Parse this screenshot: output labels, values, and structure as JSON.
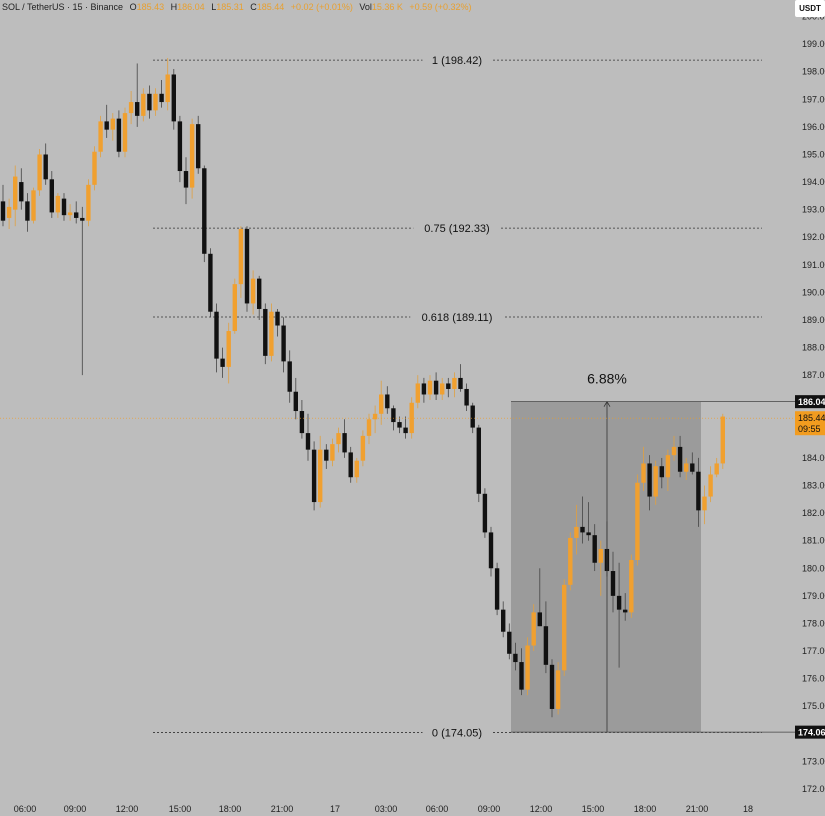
{
  "header": {
    "symbol": "SOL / TetherUS · 15 · Binance",
    "open_label": "O",
    "open": "185.43",
    "high_label": "H",
    "high": "186.04",
    "low_label": "L",
    "low": "185.31",
    "close_label": "C",
    "close": "185.44",
    "change": "+0.02 (+0.01%)",
    "vol_label": "Vol",
    "vol": "15.36 K",
    "vol_change": "+0.59 (+0.32%)"
  },
  "currency": "USDT",
  "colors": {
    "background": "#bdbdbd",
    "up_candle": "#f0a030",
    "down_candle": "#111111",
    "range_box": "#9b9b9b",
    "price_label": "#f29c1f",
    "fib_line": "#333333"
  },
  "chart_data": {
    "type": "candlestick",
    "ylim": [
      171.6,
      200.6
    ],
    "y_ticks": [
      "172.00",
      "173.00",
      "174.00",
      "175.00",
      "176.00",
      "177.00",
      "178.00",
      "179.00",
      "180.00",
      "181.00",
      "182.00",
      "183.00",
      "184.00",
      "185.00",
      "186.00",
      "187.00",
      "188.00",
      "189.00",
      "190.00",
      "191.00",
      "192.00",
      "193.00",
      "194.00",
      "195.00",
      "196.00",
      "197.00",
      "198.00",
      "199.00",
      "200.00"
    ],
    "x_ticks": [
      "06:00",
      "09:00",
      "12:00",
      "15:00",
      "18:00",
      "21:00",
      "17",
      "03:00",
      "06:00",
      "09:00",
      "12:00",
      "15:00",
      "18:00",
      "21:00",
      "18"
    ],
    "fib_levels": [
      {
        "label": "1 (198.42)",
        "value": 198.42
      },
      {
        "label": "0.75 (192.33)",
        "value": 192.33
      },
      {
        "label": "0.618 (189.11)",
        "value": 189.11
      },
      {
        "label": "0 (174.05)",
        "value": 174.05
      }
    ],
    "measure": {
      "label": "6.88%",
      "from": 174.05,
      "to": 186.04
    },
    "price_labels": [
      {
        "text": "186.04",
        "value": 186.04
      },
      {
        "text": "185.44",
        "value": 185.44,
        "timer": "09:55"
      },
      {
        "text": "174.06",
        "value": 174.06
      }
    ],
    "candles": [
      [
        193.3,
        193.9,
        192.4,
        192.6
      ],
      [
        192.7,
        193.4,
        192.3,
        193.1
      ],
      [
        193.0,
        194.6,
        192.4,
        194.2
      ],
      [
        194.0,
        194.5,
        193.0,
        193.3
      ],
      [
        193.3,
        193.6,
        192.2,
        192.6
      ],
      [
        192.6,
        193.8,
        192.5,
        193.7
      ],
      [
        193.7,
        195.2,
        193.5,
        195.0
      ],
      [
        195.0,
        195.4,
        193.9,
        194.1
      ],
      [
        194.1,
        194.4,
        192.7,
        192.9
      ],
      [
        192.9,
        193.6,
        192.7,
        193.5
      ],
      [
        193.4,
        193.6,
        192.6,
        192.8
      ],
      [
        192.8,
        193.2,
        192.6,
        192.9
      ],
      [
        192.9,
        193.3,
        192.5,
        192.7
      ],
      [
        192.7,
        193.1,
        187.0,
        192.6
      ],
      [
        192.6,
        194.1,
        192.4,
        193.9
      ],
      [
        193.9,
        195.3,
        193.7,
        195.1
      ],
      [
        195.1,
        196.4,
        194.9,
        196.2
      ],
      [
        196.2,
        196.8,
        195.6,
        195.9
      ],
      [
        195.9,
        196.5,
        195.5,
        196.3
      ],
      [
        196.3,
        196.6,
        194.9,
        195.1
      ],
      [
        195.1,
        196.7,
        194.9,
        196.5
      ],
      [
        196.5,
        197.3,
        196.1,
        196.9
      ],
      [
        196.9,
        198.3,
        196.0,
        196.4
      ],
      [
        196.4,
        197.4,
        196.2,
        197.2
      ],
      [
        197.2,
        197.5,
        196.3,
        196.6
      ],
      [
        196.6,
        197.4,
        196.4,
        197.2
      ],
      [
        197.2,
        197.7,
        196.7,
        196.9
      ],
      [
        196.9,
        198.5,
        196.6,
        197.9
      ],
      [
        197.9,
        198.1,
        195.9,
        196.2
      ],
      [
        196.2,
        196.4,
        194.0,
        194.4
      ],
      [
        194.4,
        194.9,
        193.2,
        193.8
      ],
      [
        193.8,
        196.3,
        193.4,
        196.1
      ],
      [
        196.1,
        196.4,
        194.3,
        194.5
      ],
      [
        194.5,
        194.6,
        191.1,
        191.4
      ],
      [
        191.4,
        191.6,
        189.1,
        189.3
      ],
      [
        189.3,
        189.6,
        187.1,
        187.6
      ],
      [
        187.6,
        188.0,
        186.9,
        187.3
      ],
      [
        187.3,
        188.9,
        186.7,
        188.6
      ],
      [
        188.6,
        190.5,
        188.5,
        190.3
      ],
      [
        190.3,
        192.4,
        189.8,
        192.3
      ],
      [
        192.3,
        192.4,
        189.3,
        189.6
      ],
      [
        189.6,
        190.8,
        189.2,
        190.5
      ],
      [
        190.5,
        190.6,
        189.0,
        189.4
      ],
      [
        189.4,
        189.6,
        187.4,
        187.7
      ],
      [
        187.7,
        189.6,
        187.5,
        189.3
      ],
      [
        189.3,
        189.4,
        188.4,
        188.8
      ],
      [
        188.8,
        189.1,
        187.1,
        187.5
      ],
      [
        187.5,
        187.9,
        186.0,
        186.4
      ],
      [
        186.4,
        186.9,
        185.4,
        185.7
      ],
      [
        185.7,
        186.1,
        184.7,
        184.9
      ],
      [
        184.9,
        185.6,
        183.9,
        184.3
      ],
      [
        184.3,
        184.6,
        182.1,
        182.4
      ],
      [
        182.4,
        184.8,
        182.2,
        184.3
      ],
      [
        184.3,
        184.5,
        183.6,
        183.9
      ],
      [
        183.9,
        184.7,
        183.7,
        184.5
      ],
      [
        184.5,
        185.1,
        184.2,
        184.9
      ],
      [
        184.9,
        185.4,
        184.0,
        184.2
      ],
      [
        184.2,
        184.4,
        183.1,
        183.3
      ],
      [
        183.3,
        184.0,
        183.1,
        183.9
      ],
      [
        183.9,
        185.0,
        183.7,
        184.8
      ],
      [
        184.8,
        185.6,
        184.5,
        185.4
      ],
      [
        185.4,
        185.9,
        184.9,
        185.6
      ],
      [
        185.6,
        186.8,
        185.2,
        186.3
      ],
      [
        186.3,
        186.6,
        185.6,
        185.8
      ],
      [
        185.8,
        185.9,
        185.0,
        185.3
      ],
      [
        185.3,
        185.5,
        184.9,
        185.1
      ],
      [
        185.1,
        185.5,
        184.7,
        184.9
      ],
      [
        184.9,
        186.2,
        184.7,
        186.0
      ],
      [
        186.0,
        187.0,
        185.8,
        186.7
      ],
      [
        186.7,
        186.9,
        186.0,
        186.3
      ],
      [
        186.3,
        187.0,
        186.1,
        186.8
      ],
      [
        186.8,
        187.1,
        186.1,
        186.3
      ],
      [
        186.3,
        186.9,
        186.1,
        186.7
      ],
      [
        186.7,
        186.9,
        186.2,
        186.5
      ],
      [
        186.5,
        187.1,
        186.2,
        186.9
      ],
      [
        186.9,
        187.4,
        186.4,
        186.5
      ],
      [
        186.5,
        186.7,
        185.7,
        185.9
      ],
      [
        185.9,
        186.0,
        184.9,
        185.1
      ],
      [
        185.1,
        185.2,
        182.4,
        182.7
      ],
      [
        182.7,
        182.9,
        181.1,
        181.3
      ],
      [
        181.3,
        181.5,
        179.7,
        180.0
      ],
      [
        180.0,
        180.2,
        178.3,
        178.5
      ],
      [
        178.5,
        178.8,
        177.5,
        177.7
      ],
      [
        177.7,
        178.0,
        176.7,
        176.9
      ],
      [
        176.9,
        177.3,
        176.3,
        176.6
      ],
      [
        176.6,
        177.1,
        175.4,
        175.6
      ],
      [
        175.6,
        177.5,
        175.4,
        177.2
      ],
      [
        177.2,
        178.7,
        177.0,
        178.4
      ],
      [
        178.4,
        180.0,
        177.9,
        177.9
      ],
      [
        177.9,
        178.8,
        176.2,
        176.5
      ],
      [
        176.5,
        176.7,
        174.6,
        174.9
      ],
      [
        174.9,
        176.6,
        174.7,
        176.3
      ],
      [
        176.3,
        179.6,
        176.1,
        179.4
      ],
      [
        179.4,
        181.3,
        179.2,
        181.1
      ],
      [
        181.1,
        182.3,
        180.5,
        181.5
      ],
      [
        181.5,
        182.6,
        180.9,
        181.3
      ],
      [
        181.3,
        182.4,
        181.0,
        181.2
      ],
      [
        181.2,
        181.6,
        179.9,
        180.2
      ],
      [
        180.2,
        181.0,
        179.0,
        180.7
      ],
      [
        180.7,
        181.7,
        179.7,
        179.9
      ],
      [
        179.9,
        180.6,
        178.4,
        179.0
      ],
      [
        179.0,
        180.2,
        176.4,
        178.5
      ],
      [
        178.5,
        179.1,
        178.1,
        178.4
      ],
      [
        178.4,
        180.5,
        178.2,
        180.3
      ],
      [
        180.3,
        183.4,
        180.1,
        183.1
      ],
      [
        183.1,
        184.4,
        182.8,
        183.8
      ],
      [
        183.8,
        184.1,
        182.1,
        182.6
      ],
      [
        182.6,
        183.9,
        182.3,
        183.7
      ],
      [
        183.7,
        184.0,
        182.9,
        183.3
      ],
      [
        183.3,
        184.3,
        182.8,
        184.1
      ],
      [
        184.1,
        184.8,
        183.9,
        184.4
      ],
      [
        184.4,
        184.8,
        183.3,
        183.5
      ],
      [
        183.5,
        184.0,
        183.2,
        183.8
      ],
      [
        183.8,
        184.2,
        183.4,
        183.5
      ],
      [
        183.5,
        184.0,
        181.5,
        182.1
      ],
      [
        182.1,
        183.0,
        181.6,
        182.6
      ],
      [
        182.6,
        183.7,
        182.4,
        183.4
      ],
      [
        183.4,
        184.0,
        183.3,
        183.8
      ],
      [
        183.8,
        185.6,
        183.6,
        185.5
      ]
    ]
  }
}
